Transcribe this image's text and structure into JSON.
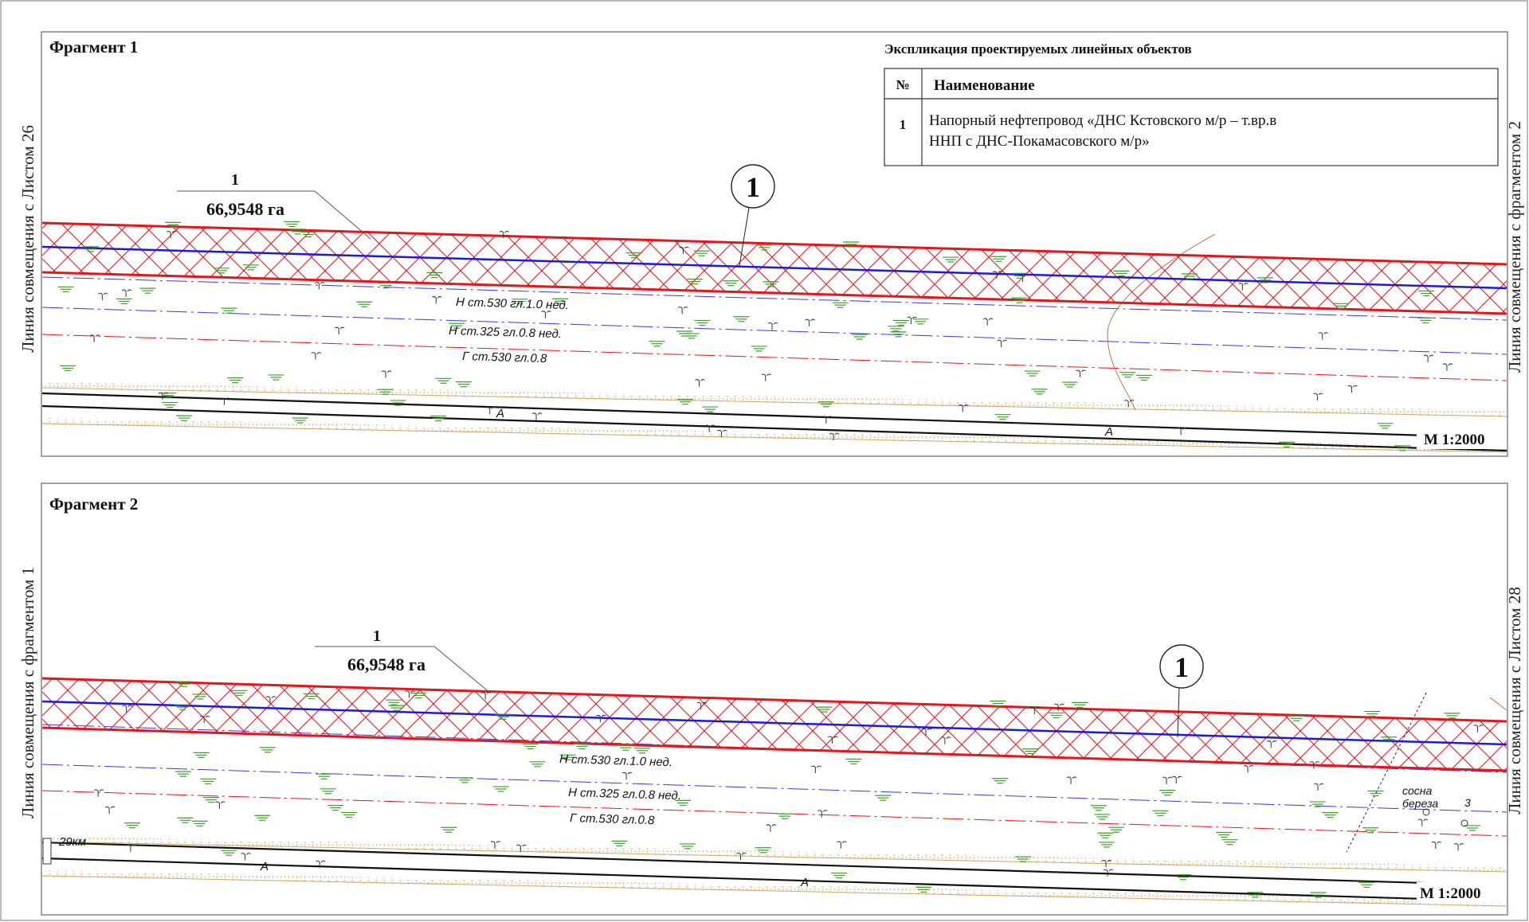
{
  "side_labels": {
    "left_top": "Линия совмещения с Листом 26",
    "right_top": "Линия совмещения с фрагментом 2",
    "left_bottom": "Линия совмещения с фрагментом 1",
    "right_bottom": "Линия совмещения с Листом 28"
  },
  "explication": {
    "title": "Экспликация проектируемых линейных объектов",
    "col_num": "№",
    "col_name": "Наименование",
    "rows": [
      {
        "num": "1",
        "name_line1": "Напорный нефтепровод «ДНС Кстовского м/р – т.вр.в",
        "name_line2": "ННП с ДНС-Покамасовского м/р»"
      }
    ]
  },
  "fragments": [
    {
      "title": "Фрагмент 1",
      "plot_number": "1",
      "plot_area": "66,9548 га",
      "object_number": "1",
      "scale": "М 1:2000",
      "utility_labels": [
        "Н ст.530 гл.1.0 нед.",
        "Н ст.325 гл.0.8 нед.",
        "Г ст.530 гл.0.8"
      ],
      "road_labels": [
        "А",
        "А"
      ],
      "extra_labels": []
    },
    {
      "title": "Фрагмент 2",
      "plot_number": "1",
      "plot_area": "66,9548 га",
      "object_number": "1",
      "scale": "М 1:2000",
      "utility_labels": [
        "Н ст.530 гл.1.0 нед.",
        "Н ст.325 гл.0.8 нед.",
        "Г ст.530 гл.0.8"
      ],
      "road_labels": [
        "А",
        "А"
      ],
      "extra_labels": [
        "29км",
        "сосна",
        "береза",
        "3"
      ]
    }
  ],
  "colors": {
    "corridor": "#e8141b",
    "pipeline_axis": "#1a1adf",
    "utility_blue": "#3a3adf",
    "utility_red": "#e8141b",
    "grass": "#3e9e2a",
    "road_edge": "#c9a96a",
    "frame": "#666666"
  }
}
